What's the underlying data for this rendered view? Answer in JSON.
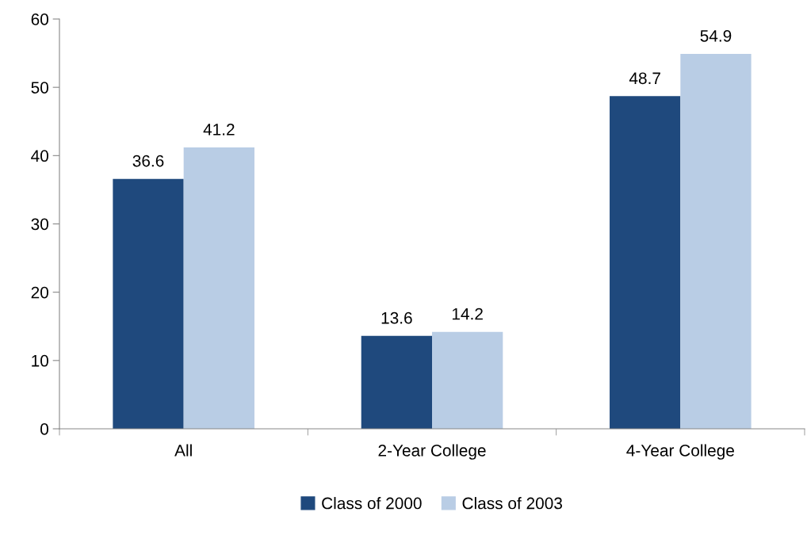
{
  "chart_data": {
    "type": "bar",
    "categories": [
      "All",
      "2-Year College",
      "4-Year College"
    ],
    "series": [
      {
        "name": "Class of 2000",
        "color": "#1f497d",
        "values": [
          36.6,
          13.6,
          48.7
        ]
      },
      {
        "name": "Class of 2003",
        "color": "#b9cde5",
        "values": [
          41.2,
          14.2,
          54.9
        ]
      }
    ],
    "ylim": [
      0,
      60
    ],
    "yticks": [
      0,
      10,
      20,
      30,
      40,
      50,
      60
    ],
    "data_labels": true,
    "grid": false,
    "legend": "bottom"
  }
}
